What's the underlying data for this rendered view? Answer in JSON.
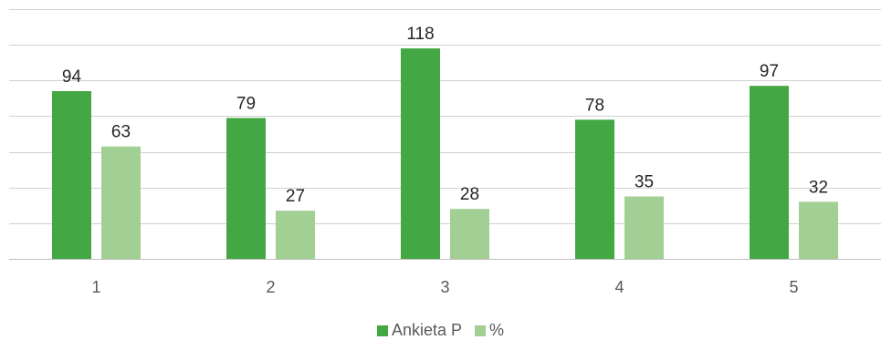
{
  "chart_data": {
    "type": "bar",
    "categories": [
      "1",
      "2",
      "3",
      "4",
      "5"
    ],
    "series": [
      {
        "name": "Ankieta P",
        "values": [
          94,
          79,
          118,
          78,
          97
        ],
        "color": "#43a843"
      },
      {
        "name": "%",
        "values": [
          63,
          27,
          28,
          35,
          32
        ],
        "color": "#a2cf93"
      }
    ],
    "ylim": [
      0,
      140
    ],
    "grid": true,
    "legend_position": "bottom",
    "title": "",
    "xlabel": "",
    "ylabel": ""
  }
}
